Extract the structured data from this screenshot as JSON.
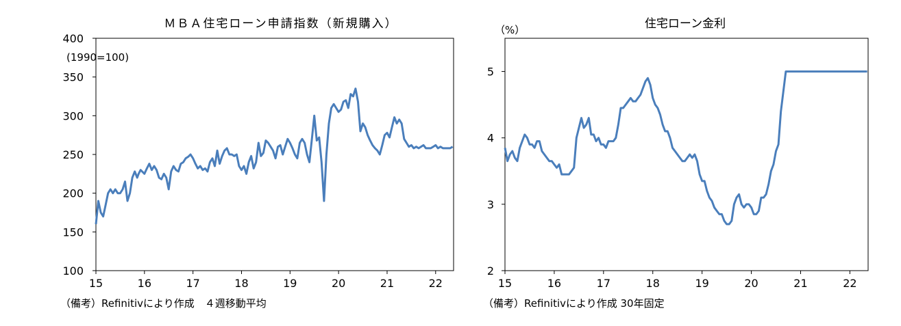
{
  "chart_data": [
    {
      "type": "line",
      "title": "ＭＢＡ住宅ローン申請指数（新規購入）",
      "unit_label": "(1990=100)",
      "note": "（備考）Refinitivにより作成　４週移動平均",
      "x_ticks": [
        "15",
        "16",
        "17",
        "18",
        "19",
        "20",
        "21",
        "22"
      ],
      "y_ticks": [
        "100",
        "150",
        "200",
        "250",
        "300",
        "350",
        "400"
      ],
      "xlim": [
        2015,
        2022.37
      ],
      "ylim": [
        100,
        400
      ],
      "grid": false,
      "line_color": "#4a7ebb",
      "series": [
        {
          "x": [
            2015.0,
            2015.05,
            2015.1,
            2015.15,
            2015.2,
            2015.25,
            2015.3,
            2015.35,
            2015.4,
            2015.45,
            2015.5,
            2015.55,
            2015.6,
            2015.65,
            2015.7,
            2015.75,
            2015.8,
            2015.85,
            2015.88,
            2015.92,
            2016.0,
            2016.05,
            2016.1,
            2016.15,
            2016.2,
            2016.25,
            2016.3,
            2016.35,
            2016.4,
            2016.45,
            2016.5,
            2016.55,
            2016.6,
            2016.65,
            2016.7,
            2016.75,
            2016.8,
            2016.85,
            2016.9,
            2016.95,
            2017.0,
            2017.05,
            2017.1,
            2017.15,
            2017.2,
            2017.25,
            2017.3,
            2017.35,
            2017.4,
            2017.45,
            2017.5,
            2017.55,
            2017.6,
            2017.65,
            2017.7,
            2017.75,
            2017.8,
            2017.85,
            2017.9,
            2017.95,
            2018.0,
            2018.05,
            2018.1,
            2018.15,
            2018.2,
            2018.25,
            2018.3,
            2018.35,
            2018.4,
            2018.45,
            2018.5,
            2018.55,
            2018.6,
            2018.65,
            2018.7,
            2018.75,
            2018.8,
            2018.85,
            2018.9,
            2018.95,
            2019.0,
            2019.05,
            2019.1,
            2019.15,
            2019.2,
            2019.25,
            2019.3,
            2019.35,
            2019.4,
            2019.45,
            2019.5,
            2019.55,
            2019.6,
            2019.65,
            2019.7,
            2019.75,
            2019.8,
            2019.85,
            2019.9,
            2019.95,
            2020.0,
            2020.05,
            2020.1,
            2020.15,
            2020.2,
            2020.25,
            2020.3,
            2020.35,
            2020.4,
            2020.45,
            2020.5,
            2020.55,
            2020.6,
            2020.65,
            2020.7,
            2020.75,
            2020.8,
            2020.85,
            2020.9,
            2020.95,
            2021.0,
            2021.05,
            2021.1,
            2021.15,
            2021.2,
            2021.25,
            2021.3,
            2021.35,
            2021.4,
            2021.45,
            2021.5,
            2021.55,
            2021.6,
            2021.65,
            2021.7,
            2021.75,
            2021.8,
            2021.85,
            2021.9,
            2021.95,
            2022.0,
            2022.05,
            2022.1,
            2022.15,
            2022.2,
            2022.25,
            2022.3,
            2022.35
          ],
          "y": [
            160,
            190,
            175,
            170,
            185,
            200,
            205,
            200,
            205,
            200,
            200,
            205,
            215,
            190,
            200,
            220,
            228,
            220,
            225,
            230,
            225,
            232,
            238,
            230,
            235,
            230,
            220,
            218,
            225,
            220,
            205,
            228,
            235,
            230,
            228,
            238,
            240,
            245,
            247,
            250,
            245,
            238,
            232,
            235,
            230,
            232,
            228,
            240,
            245,
            235,
            255,
            238,
            248,
            255,
            258,
            250,
            250,
            248,
            250,
            235,
            230,
            235,
            225,
            240,
            248,
            232,
            240,
            265,
            248,
            252,
            268,
            265,
            260,
            255,
            245,
            260,
            262,
            250,
            260,
            270,
            265,
            258,
            250,
            245,
            265,
            270,
            265,
            250,
            240,
            270,
            300,
            268,
            272,
            240,
            190,
            250,
            290,
            310,
            315,
            310,
            305,
            308,
            318,
            320,
            310,
            328,
            325,
            335,
            318,
            280,
            290,
            285,
            275,
            268,
            262,
            258,
            255,
            250,
            262,
            275,
            278,
            272,
            285,
            298,
            290,
            295,
            290,
            270,
            265,
            260,
            262,
            258,
            260,
            258,
            260,
            262,
            258,
            258,
            258,
            260,
            262,
            258,
            260,
            258,
            258,
            258,
            258,
            260
          ]
        }
      ]
    },
    {
      "type": "line",
      "title": "住宅ローン金利",
      "unit_label": "（%）",
      "note": "（備考）Refinitivにより作成 30年固定",
      "x_ticks": [
        "15",
        "16",
        "17",
        "18",
        "19",
        "20",
        "21",
        "22"
      ],
      "y_ticks": [
        "2",
        "3",
        "4",
        "5"
      ],
      "xlim": [
        2015,
        2022.37
      ],
      "ylim": [
        2,
        5.5
      ],
      "grid": false,
      "line_color": "#4a7ebb",
      "series": [
        {
          "x": [
            2015.0,
            2015.05,
            2015.1,
            2015.15,
            2015.2,
            2015.25,
            2015.3,
            2015.35,
            2015.4,
            2015.45,
            2015.5,
            2015.55,
            2015.6,
            2015.65,
            2015.7,
            2015.75,
            2015.8,
            2015.85,
            2015.9,
            2015.95,
            2016.0,
            2016.05,
            2016.1,
            2016.15,
            2016.2,
            2016.25,
            2016.3,
            2016.35,
            2016.4,
            2016.45,
            2016.5,
            2016.55,
            2016.6,
            2016.65,
            2016.7,
            2016.75,
            2016.8,
            2016.85,
            2016.9,
            2016.95,
            2017.0,
            2017.05,
            2017.1,
            2017.15,
            2017.2,
            2017.25,
            2017.3,
            2017.35,
            2017.4,
            2017.45,
            2017.5,
            2017.55,
            2017.6,
            2017.65,
            2017.7,
            2017.75,
            2017.8,
            2017.85,
            2017.9,
            2017.95,
            2018.0,
            2018.05,
            2018.1,
            2018.15,
            2018.2,
            2018.25,
            2018.3,
            2018.35,
            2018.4,
            2018.45,
            2018.5,
            2018.55,
            2018.6,
            2018.65,
            2018.7,
            2018.75,
            2018.8,
            2018.85,
            2018.9,
            2018.95,
            2019.0,
            2019.05,
            2019.1,
            2019.15,
            2019.2,
            2019.25,
            2019.3,
            2019.35,
            2019.4,
            2019.45,
            2019.5,
            2019.55,
            2019.6,
            2019.65,
            2019.7,
            2019.75,
            2019.8,
            2019.85,
            2019.9,
            2019.95,
            2020.0,
            2020.05,
            2020.1,
            2020.15,
            2020.2,
            2020.25,
            2020.3,
            2020.35,
            2020.4,
            2020.45,
            2020.5,
            2020.55,
            2020.6,
            2020.65,
            2020.7,
            2020.75,
            2020.8,
            2020.85,
            2020.9,
            2020.95,
            2021.0,
            2021.05,
            2021.1,
            2021.15,
            2021.2,
            2021.25,
            2021.3,
            2021.35,
            2021.4,
            2021.45,
            2021.5,
            2021.55,
            2021.6,
            2021.65,
            2021.7,
            2021.75,
            2021.8,
            2021.85,
            2021.9,
            2021.95,
            2022.0,
            2022.05,
            2022.1,
            2022.15,
            2022.2,
            2022.25,
            2022.3,
            2022.35
          ],
          "y": [
            3.85,
            3.65,
            3.75,
            3.8,
            3.7,
            3.65,
            3.85,
            3.95,
            4.05,
            4.0,
            3.9,
            3.9,
            3.85,
            3.95,
            3.95,
            3.8,
            3.75,
            3.7,
            3.65,
            3.65,
            3.6,
            3.55,
            3.6,
            3.45,
            3.45,
            3.45,
            3.45,
            3.5,
            3.55,
            4.0,
            4.15,
            4.3,
            4.15,
            4.2,
            4.3,
            4.05,
            4.05,
            3.95,
            4.0,
            3.9,
            3.9,
            3.85,
            3.95,
            3.95,
            3.95,
            4.0,
            4.2,
            4.45,
            4.45,
            4.5,
            4.55,
            4.6,
            4.55,
            4.55,
            4.6,
            4.65,
            4.75,
            4.85,
            4.9,
            4.8,
            4.6,
            4.5,
            4.45,
            4.35,
            4.2,
            4.1,
            4.1,
            4.0,
            3.85,
            3.8,
            3.75,
            3.7,
            3.65,
            3.65,
            3.7,
            3.75,
            3.7,
            3.75,
            3.65,
            3.45,
            3.35,
            3.35,
            3.2,
            3.1,
            3.05,
            2.95,
            2.9,
            2.85,
            2.85,
            2.75,
            2.7,
            2.7,
            2.75,
            3.0,
            3.1,
            3.15,
            3.0,
            2.95,
            3.0,
            3.0,
            2.95,
            2.85,
            2.85,
            2.9,
            3.1,
            3.1,
            3.15,
            3.3,
            3.5,
            3.6,
            3.8,
            3.9,
            4.4,
            4.7,
            5.0,
            5.0,
            5.0,
            5.0,
            5.0,
            5.0,
            5.0,
            5.0,
            5.0,
            5.0,
            5.0,
            5.0,
            5.0,
            5.0,
            5.0,
            5.0,
            5.0,
            5.0,
            5.0,
            5.0,
            5.0,
            5.0,
            5.0,
            5.0,
            5.0,
            5.0,
            5.0,
            5.0,
            5.0,
            5.0,
            5.0,
            5.0,
            5.0,
            5.0
          ]
        }
      ]
    }
  ]
}
